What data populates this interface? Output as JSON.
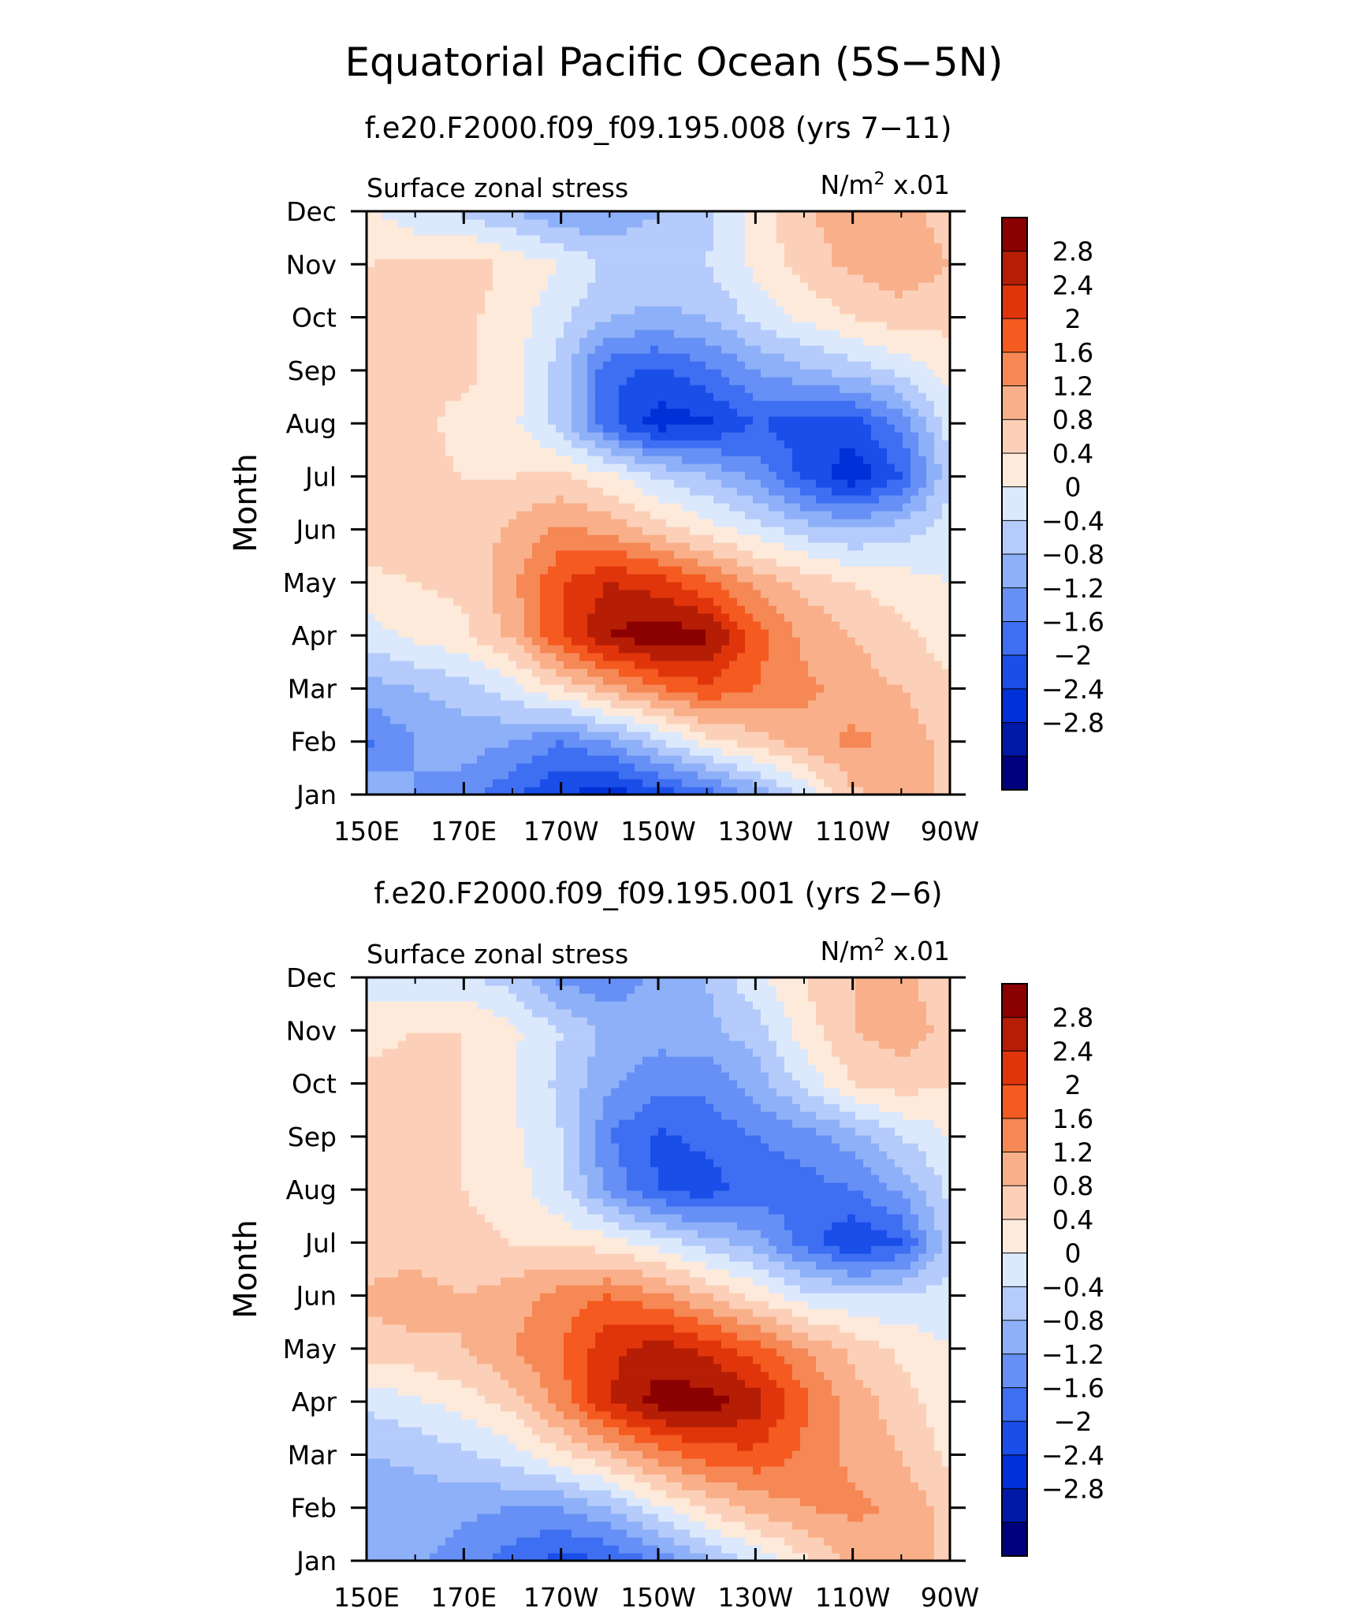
{
  "figure": {
    "title": "Equatorial Pacific Ocean (5S−5N)"
  },
  "chart_data": [
    {
      "type": "heatmap",
      "subtitle": "f.e20.F2000.f09_f09.195.008 (yrs 7−11)",
      "field_label": "Surface zonal stress",
      "units_prefix": "N/m",
      "units_sup": "2",
      "units_suffix": " x.01",
      "ylabel": "Month",
      "xlabel": "",
      "x_ticks": [
        "150E",
        "170E",
        "170W",
        "150W",
        "130W",
        "110W",
        "90W"
      ],
      "x_values": [
        150,
        170,
        190,
        210,
        230,
        250,
        270
      ],
      "xlim": [
        150,
        270
      ],
      "y_ticks": [
        "Jan",
        "Feb",
        "Mar",
        "Apr",
        "May",
        "Jun",
        "Jul",
        "Aug",
        "Sep",
        "Oct",
        "Nov",
        "Dec"
      ],
      "ylim": [
        1,
        12
      ],
      "colorbar_labels": [
        "2.8",
        "2.4",
        "2",
        "1.6",
        "1.2",
        "0.8",
        "0.4",
        "0",
        "−0.4",
        "−0.8",
        "−1.2",
        "−1.6",
        "−2",
        "−2.4",
        "−2.8"
      ],
      "grid": {
        "x": [
          150,
          160,
          170,
          180,
          190,
          200,
          210,
          220,
          230,
          240,
          250,
          260,
          270
        ],
        "z": [
          [
            -0.9,
            -1.2,
            -1.4,
            -1.9,
            -2.4,
            -2.6,
            -2.3,
            -1.8,
            -1.1,
            -0.3,
            0.7,
            1.0,
            0.7
          ],
          [
            -1.7,
            -1.2,
            -1.0,
            -1.2,
            -1.6,
            -1.2,
            -0.5,
            0.2,
            0.6,
            1.0,
            1.3,
            1.1,
            0.6
          ],
          [
            -1.0,
            -0.8,
            -0.6,
            -0.2,
            0.4,
            1.0,
            1.5,
            1.9,
            1.6,
            1.3,
            1.0,
            0.8,
            0.5
          ],
          [
            -0.2,
            0.1,
            0.3,
            0.9,
            2.0,
            2.8,
            3.1,
            2.9,
            1.8,
            1.1,
            0.8,
            0.5,
            0.2
          ],
          [
            0.3,
            0.4,
            0.5,
            1.1,
            2.0,
            2.4,
            2.2,
            1.7,
            1.1,
            0.7,
            0.4,
            0.2,
            0.0
          ],
          [
            0.6,
            0.7,
            0.5,
            0.9,
            1.3,
            1.1,
            0.6,
            0.2,
            -0.2,
            -0.6,
            -0.8,
            -0.6,
            -0.2
          ],
          [
            0.5,
            0.5,
            0.4,
            0.4,
            0.5,
            0.1,
            -0.4,
            -0.8,
            -1.3,
            -2.1,
            -2.7,
            -2.0,
            -0.5
          ],
          [
            0.5,
            0.5,
            0.3,
            0.1,
            -0.6,
            -1.9,
            -2.6,
            -2.5,
            -2.0,
            -2.2,
            -2.2,
            -1.5,
            -0.2
          ],
          [
            0.4,
            0.4,
            0.5,
            0.2,
            -0.6,
            -1.9,
            -2.1,
            -1.7,
            -1.2,
            -0.9,
            -0.6,
            -0.3,
            0.2
          ],
          [
            0.4,
            0.5,
            0.5,
            0.2,
            -0.3,
            -0.8,
            -0.9,
            -0.8,
            -0.3,
            0.1,
            0.4,
            0.6,
            0.5
          ],
          [
            0.4,
            0.5,
            0.6,
            0.3,
            0.0,
            -0.5,
            -0.5,
            -0.4,
            0.1,
            0.6,
            0.9,
            1.1,
            0.8
          ],
          [
            0.1,
            -0.3,
            -0.5,
            -0.8,
            -1.2,
            -1.1,
            -0.8,
            -0.5,
            0.2,
            0.7,
            1.1,
            1.0,
            0.6
          ]
        ]
      }
    },
    {
      "type": "heatmap",
      "subtitle": "f.e20.F2000.f09_f09.195.001 (yrs 2−6)",
      "field_label": "Surface zonal stress",
      "units_prefix": "N/m",
      "units_sup": "2",
      "units_suffix": " x.01",
      "ylabel": "Month",
      "xlabel": "",
      "x_ticks": [
        "150E",
        "170E",
        "170W",
        "150W",
        "130W",
        "110W",
        "90W"
      ],
      "x_values": [
        150,
        170,
        190,
        210,
        230,
        250,
        270
      ],
      "xlim": [
        150,
        270
      ],
      "y_ticks": [
        "Jan",
        "Feb",
        "Mar",
        "Apr",
        "May",
        "Jun",
        "Jul",
        "Aug",
        "Sep",
        "Oct",
        "Nov",
        "Dec"
      ],
      "ylim": [
        1,
        12
      ],
      "colorbar_labels": [
        "2.8",
        "2.4",
        "2",
        "1.6",
        "1.2",
        "0.8",
        "0.4",
        "0",
        "−0.4",
        "−0.8",
        "−1.2",
        "−1.6",
        "−2",
        "−2.4",
        "−2.8"
      ],
      "grid": {
        "x": [
          150,
          160,
          170,
          180,
          190,
          200,
          210,
          220,
          230,
          240,
          250,
          260,
          270
        ],
        "z": [
          [
            -1.2,
            -1.1,
            -1.4,
            -1.8,
            -2.2,
            -2.0,
            -1.5,
            -0.9,
            -0.3,
            0.3,
            0.9,
            1.1,
            0.6
          ],
          [
            -1.2,
            -1.0,
            -1.1,
            -1.2,
            -1.2,
            -0.8,
            -0.1,
            0.5,
            0.9,
            1.2,
            1.3,
            1.1,
            0.6
          ],
          [
            -0.8,
            -0.7,
            -0.5,
            -0.2,
            0.3,
            0.8,
            1.4,
            1.8,
            1.9,
            1.5,
            1.1,
            0.8,
            0.3
          ],
          [
            -0.3,
            -0.1,
            0.2,
            0.6,
            1.4,
            2.4,
            3.0,
            3.0,
            2.6,
            1.7,
            1.0,
            0.6,
            0.1
          ],
          [
            0.6,
            0.7,
            0.8,
            1.2,
            1.6,
            2.3,
            2.6,
            2.3,
            1.8,
            1.2,
            0.7,
            0.3,
            0.0
          ],
          [
            0.9,
            1.0,
            0.8,
            1.0,
            1.4,
            1.6,
            1.3,
            0.8,
            0.3,
            -0.2,
            -0.4,
            -0.4,
            -0.2
          ],
          [
            0.5,
            0.6,
            0.5,
            0.4,
            0.3,
            0.2,
            -0.2,
            -0.6,
            -1.0,
            -1.8,
            -2.4,
            -2.0,
            -0.6
          ],
          [
            0.5,
            0.5,
            0.4,
            0.2,
            -0.3,
            -1.3,
            -2.0,
            -2.2,
            -1.8,
            -1.8,
            -1.6,
            -1.1,
            -0.3
          ],
          [
            0.5,
            0.5,
            0.4,
            0.1,
            -0.4,
            -1.6,
            -2.1,
            -1.9,
            -1.6,
            -1.4,
            -1.0,
            -0.4,
            0.0
          ],
          [
            0.5,
            0.5,
            0.4,
            0.0,
            -0.5,
            -1.1,
            -1.5,
            -1.5,
            -1.0,
            -0.3,
            0.4,
            0.6,
            0.4
          ],
          [
            0.3,
            0.4,
            0.4,
            0.1,
            -0.4,
            -0.9,
            -1.0,
            -0.9,
            -0.6,
            0.2,
            0.8,
            1.0,
            0.7
          ],
          [
            -0.3,
            -0.4,
            -0.3,
            -0.6,
            -1.3,
            -1.5,
            -1.1,
            -0.8,
            -0.1,
            0.4,
            0.8,
            0.9,
            0.5
          ]
        ]
      }
    }
  ],
  "colors": {
    "scale": [
      "#00007e",
      "#0018a8",
      "#0030d8",
      "#1a4ee8",
      "#3e6ef2",
      "#6690f5",
      "#8eb0f8",
      "#b5cbfb",
      "#dce9fd",
      "#fdeadb",
      "#fcd0b8",
      "#f9b08a",
      "#f58855",
      "#f55a20",
      "#e0350b",
      "#b51d05",
      "#8b0000"
    ]
  }
}
